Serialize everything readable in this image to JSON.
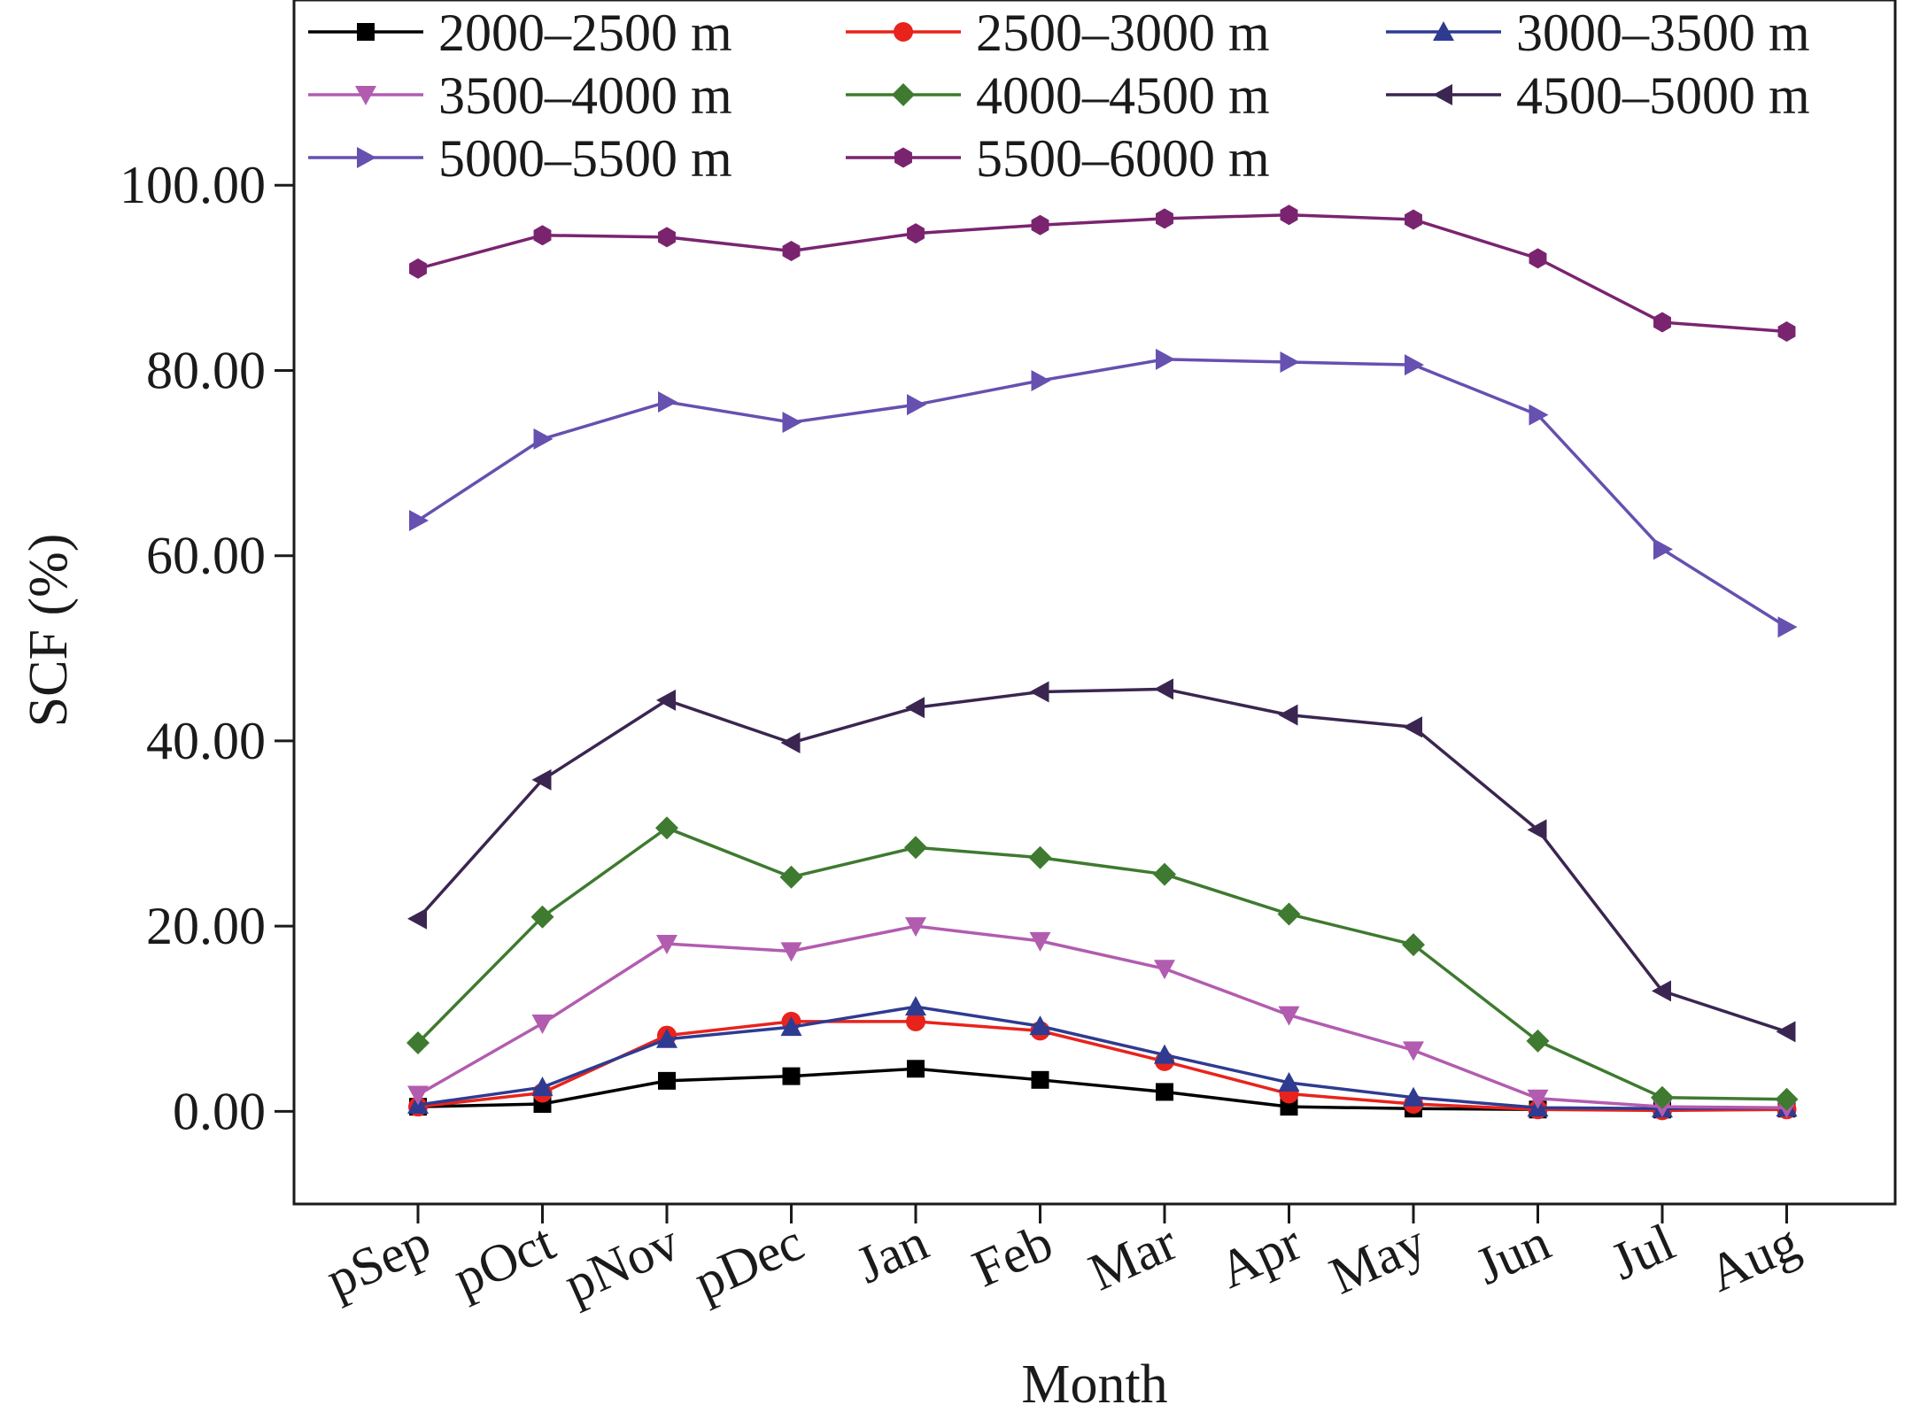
{
  "chart_data": {
    "type": "line",
    "xlabel": "Month",
    "ylabel": "SCF (%)",
    "categories": [
      "pSep",
      "pOct",
      "pNov",
      "pDec",
      "Jan",
      "Feb",
      "Mar",
      "Apr",
      "May",
      "Jun",
      "Jul",
      "Aug"
    ],
    "ylim": [
      -10,
      120
    ],
    "yticks": [
      0,
      20,
      40,
      60,
      80,
      100
    ],
    "ytick_labels": [
      "0.00",
      "20.00",
      "40.00",
      "60.00",
      "80.00",
      "100.00"
    ],
    "grid": false,
    "legend_position": "top",
    "series": [
      {
        "name": "2000–2500 m",
        "color": "#000000",
        "marker": "square",
        "values": [
          0.5,
          0.8,
          3.3,
          3.8,
          4.6,
          3.4,
          2.1,
          0.5,
          0.3,
          0.2,
          0.2,
          0.3
        ]
      },
      {
        "name": "2500–3000 m",
        "color": "#e8231c",
        "marker": "circle",
        "values": [
          0.5,
          2.0,
          8.2,
          9.7,
          9.7,
          8.7,
          5.4,
          1.9,
          0.8,
          0.2,
          0.1,
          0.2
        ]
      },
      {
        "name": "3000–3500 m",
        "color": "#2e3b91",
        "marker": "triangle-up",
        "values": [
          0.7,
          2.6,
          7.8,
          9.1,
          11.3,
          9.2,
          6.1,
          3.1,
          1.5,
          0.4,
          0.3,
          0.4
        ]
      },
      {
        "name": "3500–4000 m",
        "color": "#b25cb0",
        "marker": "triangle-down",
        "values": [
          1.8,
          9.5,
          18.1,
          17.3,
          20.0,
          18.4,
          15.4,
          10.4,
          6.6,
          1.4,
          0.5,
          0.4
        ]
      },
      {
        "name": "4000–4500 m",
        "color": "#3e7a2f",
        "marker": "diamond",
        "values": [
          7.4,
          21.0,
          30.6,
          25.3,
          28.5,
          27.4,
          25.6,
          21.3,
          18.0,
          7.6,
          1.5,
          1.3
        ]
      },
      {
        "name": "4500–5000 m",
        "color": "#3a2650",
        "marker": "triangle-left",
        "values": [
          20.8,
          35.8,
          44.4,
          39.8,
          43.6,
          45.3,
          45.6,
          42.8,
          41.5,
          30.4,
          13.0,
          8.6
        ]
      },
      {
        "name": "5000–5500 m",
        "color": "#6650b0",
        "marker": "triangle-right",
        "values": [
          63.8,
          72.6,
          76.6,
          74.4,
          76.3,
          78.9,
          81.2,
          80.9,
          80.6,
          75.2,
          60.7,
          52.3
        ]
      },
      {
        "name": "5500–6000 m",
        "color": "#7a2470",
        "marker": "hexagon",
        "values": [
          91.0,
          94.6,
          94.4,
          92.9,
          94.8,
          95.7,
          96.4,
          96.8,
          96.3,
          92.1,
          85.2,
          84.2
        ]
      }
    ]
  }
}
